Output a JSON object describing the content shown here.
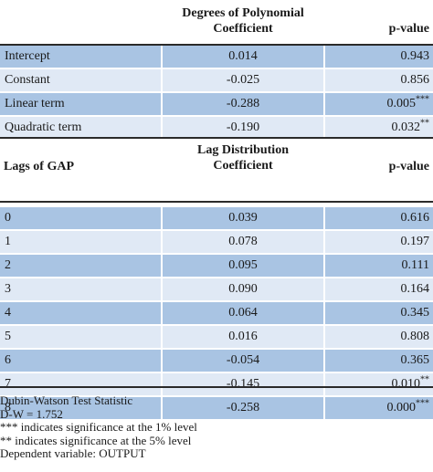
{
  "top_section": {
    "header": {
      "col2_line1": "Degrees of Polynomial",
      "col2_line2": "Coefficient",
      "col3": "p-value"
    },
    "rows": [
      {
        "label": "Intercept",
        "coef": "0.014",
        "pvalue": "0.943",
        "stars": ""
      },
      {
        "label": "Constant",
        "coef": "-0.025",
        "pvalue": "0.856",
        "stars": ""
      },
      {
        "label": "Linear term",
        "coef": "-0.288",
        "pvalue": "0.005",
        "stars": "***"
      },
      {
        "label": "Quadratic term",
        "coef": "-0.190",
        "pvalue": "0.032",
        "stars": "**"
      }
    ]
  },
  "bottom_section": {
    "header": {
      "col1": "Lags of GAP",
      "col2_line1": "Lag Distribution",
      "col2_line2": "Coefficient",
      "col3": "p-value"
    },
    "rows": [
      {
        "label": "0",
        "coef": "0.039",
        "pvalue": "0.616",
        "stars": ""
      },
      {
        "label": "1",
        "coef": "0.078",
        "pvalue": "0.197",
        "stars": ""
      },
      {
        "label": "2",
        "coef": "0.095",
        "pvalue": "0.111",
        "stars": ""
      },
      {
        "label": "3",
        "coef": "0.090",
        "pvalue": "0.164",
        "stars": ""
      },
      {
        "label": "4",
        "coef": "0.064",
        "pvalue": "0.345",
        "stars": ""
      },
      {
        "label": "5",
        "coef": "0.016",
        "pvalue": "0.808",
        "stars": ""
      },
      {
        "label": "6",
        "coef": "-0.054",
        "pvalue": "0.365",
        "stars": ""
      },
      {
        "label": "7",
        "coef": "-0.145",
        "pvalue": "0.010",
        "stars": "**"
      },
      {
        "label": "8",
        "coef": "-0.258",
        "pvalue": "0.000",
        "stars": "***"
      }
    ]
  },
  "notes": [
    "Dubin-Watson Test Statistic",
    "D-W = 1.752",
    "*** indicates significance at the 1% level",
    "** indicates significance at the 5% level",
    "Dependent variable: OUTPUT"
  ],
  "colors": {
    "row_dark": "#a9c4e3",
    "row_light": "#e0e9f5",
    "rule": "#2a2a2a"
  }
}
